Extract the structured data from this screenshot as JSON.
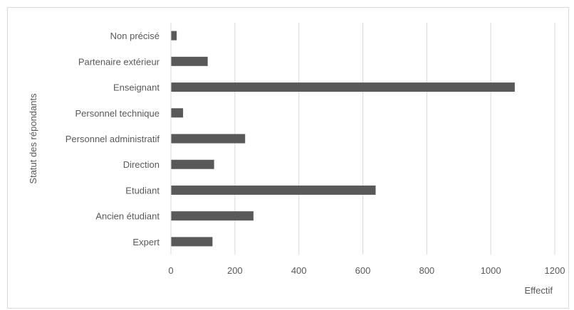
{
  "chart_data": {
    "type": "bar",
    "orientation": "horizontal",
    "title": "",
    "xlabel": "Effectif",
    "ylabel": "Statut des répondants",
    "categories": [
      "Non précisé",
      "Partenaire extérieur",
      "Enseignant",
      "Personnel technique",
      "Personnel administratif",
      "Direction",
      "Etudiant",
      "Ancien étudiant",
      "Expert"
    ],
    "values": [
      18,
      115,
      1075,
      38,
      232,
      135,
      640,
      258,
      130
    ],
    "xlim": [
      0,
      1200
    ],
    "xticks": [
      "0",
      "200",
      "400",
      "600",
      "800",
      "1000",
      "1200"
    ],
    "grid": "vertical",
    "bar_color": "#595959",
    "legend": "none"
  }
}
